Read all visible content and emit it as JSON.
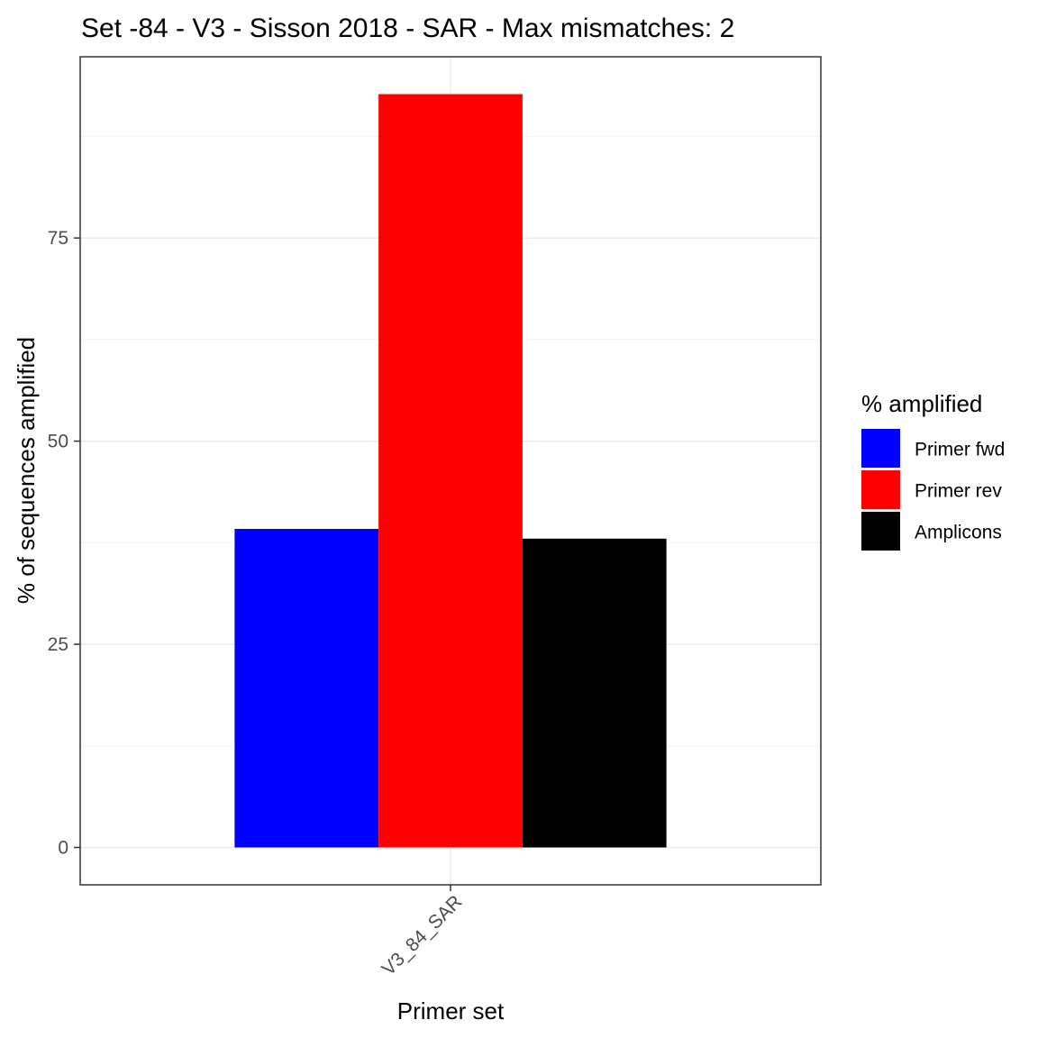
{
  "chart_data": {
    "type": "bar",
    "title": "Set -84 - V3 - Sisson 2018 - SAR - Max mismatches: 2",
    "xlabel": "Primer set",
    "ylabel": "% of sequences amplified",
    "categories": [
      "V3_84_SAR"
    ],
    "series": [
      {
        "name": "Primer fwd",
        "color": "#0000ff",
        "values": [
          39.2
        ]
      },
      {
        "name": "Primer rev",
        "color": "#ff0000",
        "values": [
          92.7
        ]
      },
      {
        "name": "Amplicons",
        "color": "#000000",
        "values": [
          38.0
        ]
      }
    ],
    "ylim": [
      -4.6,
      97.3
    ],
    "yticks": [
      0,
      25,
      50,
      75
    ],
    "ytick_labels": [
      "0",
      "25",
      "50",
      "75"
    ],
    "grid": true,
    "legend": {
      "title": "% amplified",
      "placement": "right"
    }
  }
}
